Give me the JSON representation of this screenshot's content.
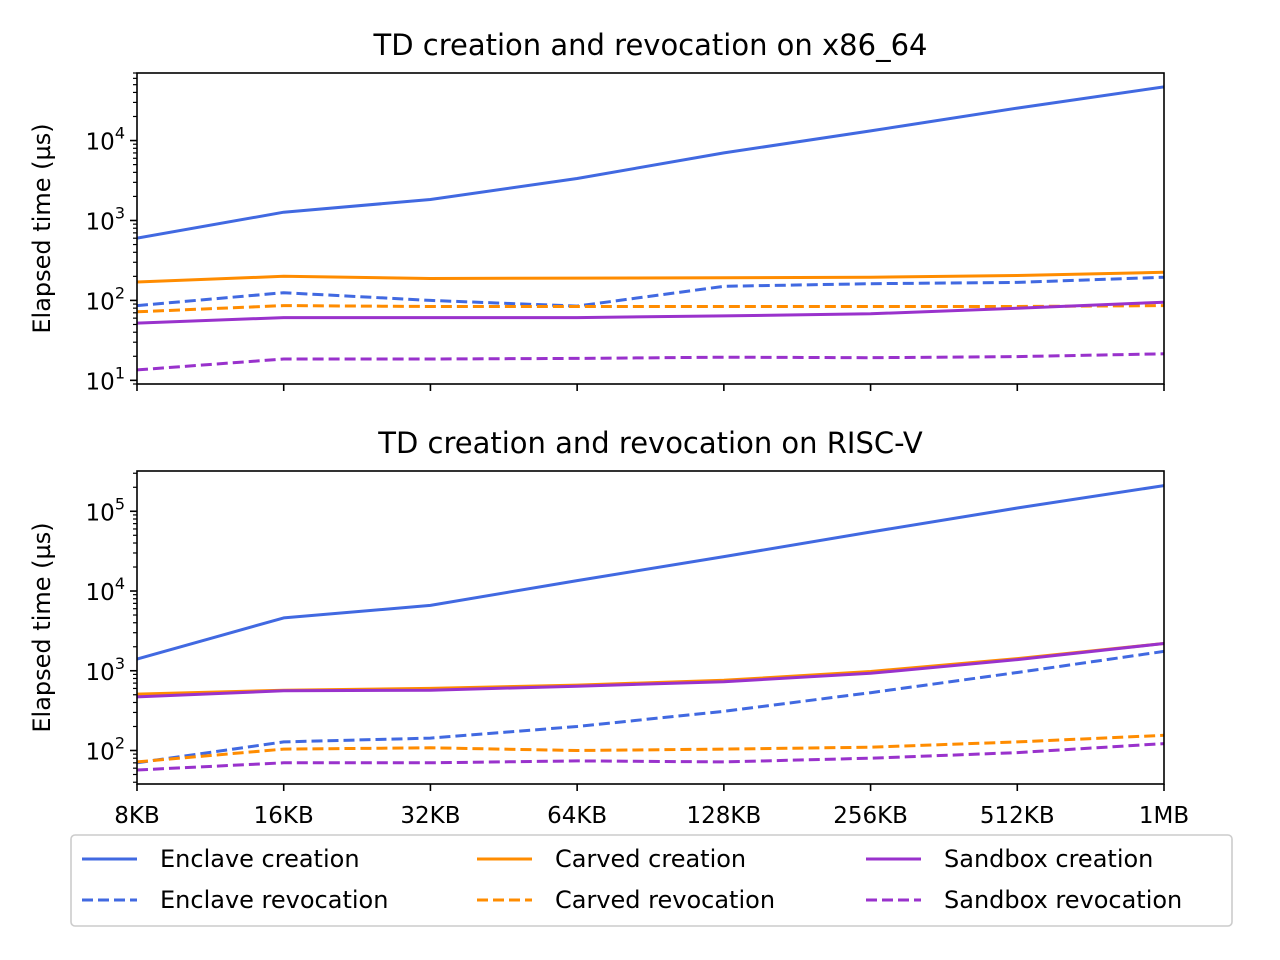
{
  "chart_data": [
    {
      "type": "line",
      "title": "TD creation and revocation on x86_64",
      "xlabel": "",
      "ylabel": "Elapsed time (µs)",
      "yscale": "log",
      "ylim": [
        9,
        70000
      ],
      "y_ticks": [
        10,
        100,
        1000,
        10000
      ],
      "show_x_tick_labels": false,
      "categories": [
        "8KB",
        "16KB",
        "32KB",
        "64KB",
        "128KB",
        "256KB",
        "512KB",
        "1MB"
      ],
      "series": [
        {
          "name": "Enclave creation",
          "color": "#4169e1",
          "style": "solid",
          "values": [
            600,
            1270,
            1830,
            3350,
            7000,
            13200,
            25500,
            47000
          ]
        },
        {
          "name": "Enclave revocation",
          "color": "#4169e1",
          "style": "dashed",
          "values": [
            86,
            125,
            100,
            85,
            150,
            162,
            168,
            195
          ]
        },
        {
          "name": "Carved creation",
          "color": "#ff8c00",
          "style": "solid",
          "values": [
            170,
            200,
            188,
            190,
            192,
            195,
            205,
            225
          ]
        },
        {
          "name": "Carved revocation",
          "color": "#ff8c00",
          "style": "dashed",
          "values": [
            72,
            86,
            84,
            84,
            84,
            84,
            84,
            86
          ]
        },
        {
          "name": "Sandbox creation",
          "color": "#9932cc",
          "style": "solid",
          "values": [
            52,
            61,
            61,
            61,
            64,
            68,
            80,
            95
          ]
        },
        {
          "name": "Sandbox revocation",
          "color": "#9932cc",
          "style": "dashed",
          "values": [
            13.5,
            18.5,
            18.5,
            18.8,
            19.5,
            19.2,
            19.8,
            21.5
          ]
        }
      ]
    },
    {
      "type": "line",
      "title": "TD creation and revocation on RISC-V",
      "xlabel": "",
      "ylabel": "Elapsed time (µs)",
      "yscale": "log",
      "ylim": [
        38,
        320000
      ],
      "y_ticks": [
        100,
        1000,
        10000,
        100000
      ],
      "show_x_tick_labels": true,
      "categories": [
        "8KB",
        "16KB",
        "32KB",
        "64KB",
        "128KB",
        "256KB",
        "512KB",
        "1MB"
      ],
      "series": [
        {
          "name": "Enclave creation",
          "color": "#4169e1",
          "style": "solid",
          "values": [
            1400,
            4600,
            6600,
            13500,
            27000,
            55000,
            110000,
            210000
          ]
        },
        {
          "name": "Enclave revocation",
          "color": "#4169e1",
          "style": "dashed",
          "values": [
            70,
            128,
            143,
            200,
            310,
            530,
            950,
            1750
          ]
        },
        {
          "name": "Carved creation",
          "color": "#ff8c00",
          "style": "solid",
          "values": [
            510,
            570,
            600,
            660,
            760,
            980,
            1420,
            2200
          ]
        },
        {
          "name": "Carved revocation",
          "color": "#ff8c00",
          "style": "dashed",
          "values": [
            72,
            104,
            108,
            100,
            104,
            110,
            128,
            155
          ]
        },
        {
          "name": "Sandbox creation",
          "color": "#9932cc",
          "style": "solid",
          "values": [
            470,
            560,
            570,
            640,
            730,
            930,
            1380,
            2200
          ]
        },
        {
          "name": "Sandbox revocation",
          "color": "#9932cc",
          "style": "dashed",
          "values": [
            57,
            70,
            70,
            74,
            72,
            80,
            94,
            122
          ]
        }
      ]
    }
  ],
  "legend": {
    "placement": "bottom-center",
    "items": [
      {
        "label": "Enclave creation",
        "color": "#4169e1",
        "style": "solid"
      },
      {
        "label": "Carved creation",
        "color": "#ff8c00",
        "style": "solid"
      },
      {
        "label": "Sandbox creation",
        "color": "#9932cc",
        "style": "solid"
      },
      {
        "label": "Enclave revocation",
        "color": "#4169e1",
        "style": "dashed"
      },
      {
        "label": "Carved revocation",
        "color": "#ff8c00",
        "style": "dashed"
      },
      {
        "label": "Sandbox revocation",
        "color": "#9932cc",
        "style": "dashed"
      }
    ]
  }
}
